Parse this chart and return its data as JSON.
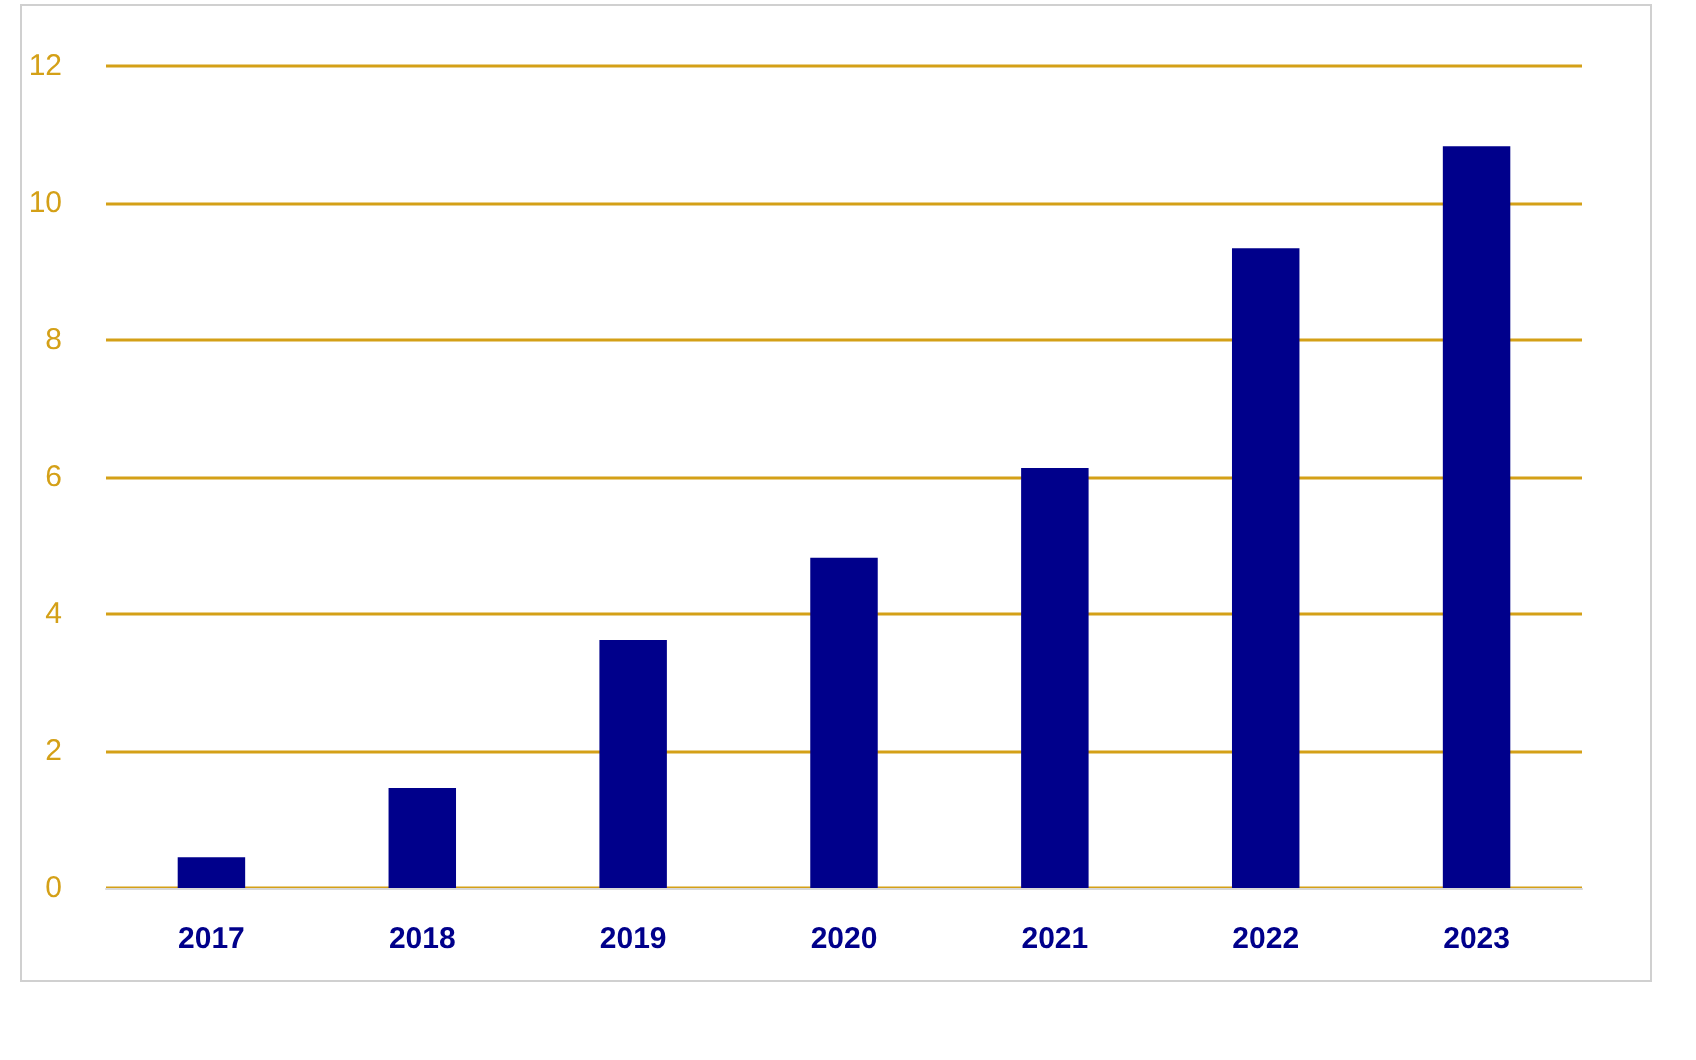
{
  "chart_data": {
    "type": "bar",
    "categories": [
      "2017",
      "2018",
      "2019",
      "2020",
      "2021",
      "2022",
      "2023"
    ],
    "series": [
      {
        "color": "#00008b",
        "values": [
          0.45,
          1.46,
          3.62,
          4.82,
          6.13,
          9.34,
          10.83
        ]
      }
    ],
    "ylim": [
      0,
      12
    ],
    "yticks": [
      0,
      2,
      4,
      6,
      8,
      10,
      12
    ],
    "grid": "y"
  }
}
